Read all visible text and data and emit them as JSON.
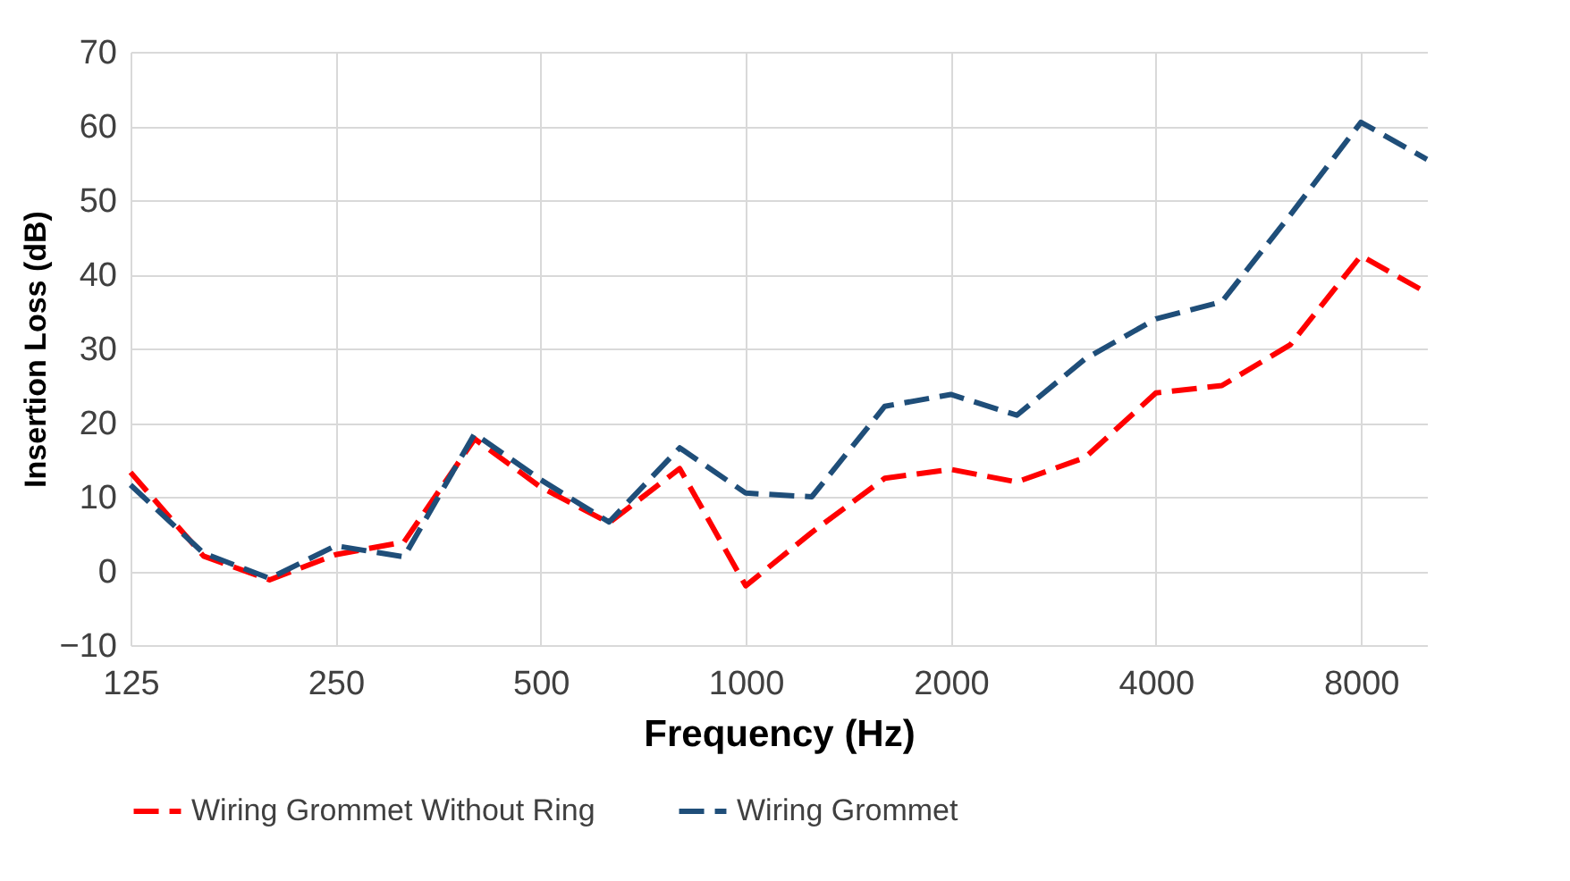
{
  "chart_data": {
    "type": "line",
    "xlabel": "Frequency (Hz)",
    "ylabel": "Insertion Loss (dB)",
    "log": "x",
    "x": [
      125,
      160,
      200,
      250,
      315,
      400,
      500,
      630,
      800,
      1000,
      1250,
      1600,
      2000,
      2500,
      3150,
      4000,
      5000,
      6300,
      8000,
      10000
    ],
    "xlim": [
      125,
      10000
    ],
    "xticks": [
      125,
      250,
      500,
      1000,
      2000,
      4000,
      8000
    ],
    "ylim": [
      -10,
      70
    ],
    "yticks": [
      -10,
      0,
      10,
      20,
      30,
      40,
      50,
      60,
      70
    ],
    "grid": true,
    "legend": "bottom",
    "marker": "none",
    "line_style": "dashed",
    "series": [
      {
        "name": "Wiring Grommet Without Ring",
        "color": "#ff0000",
        "values": [
          13.3,
          2,
          -1.2,
          2.2,
          3.9,
          17.8,
          11.3,
          6.5,
          13.8,
          -2,
          5.2,
          12.5,
          13.7,
          12,
          15.3,
          24,
          25,
          30.5,
          42.5,
          37.5
        ]
      },
      {
        "name": "Wiring Grommet",
        "color": "#1f4e79",
        "values": [
          11.6,
          2.4,
          -1,
          3.4,
          1.9,
          18.5,
          12.3,
          6.6,
          16.6,
          10.5,
          10,
          22.2,
          23.8,
          21,
          28.6,
          34,
          36.3,
          48,
          60.5,
          55.5
        ]
      }
    ]
  }
}
